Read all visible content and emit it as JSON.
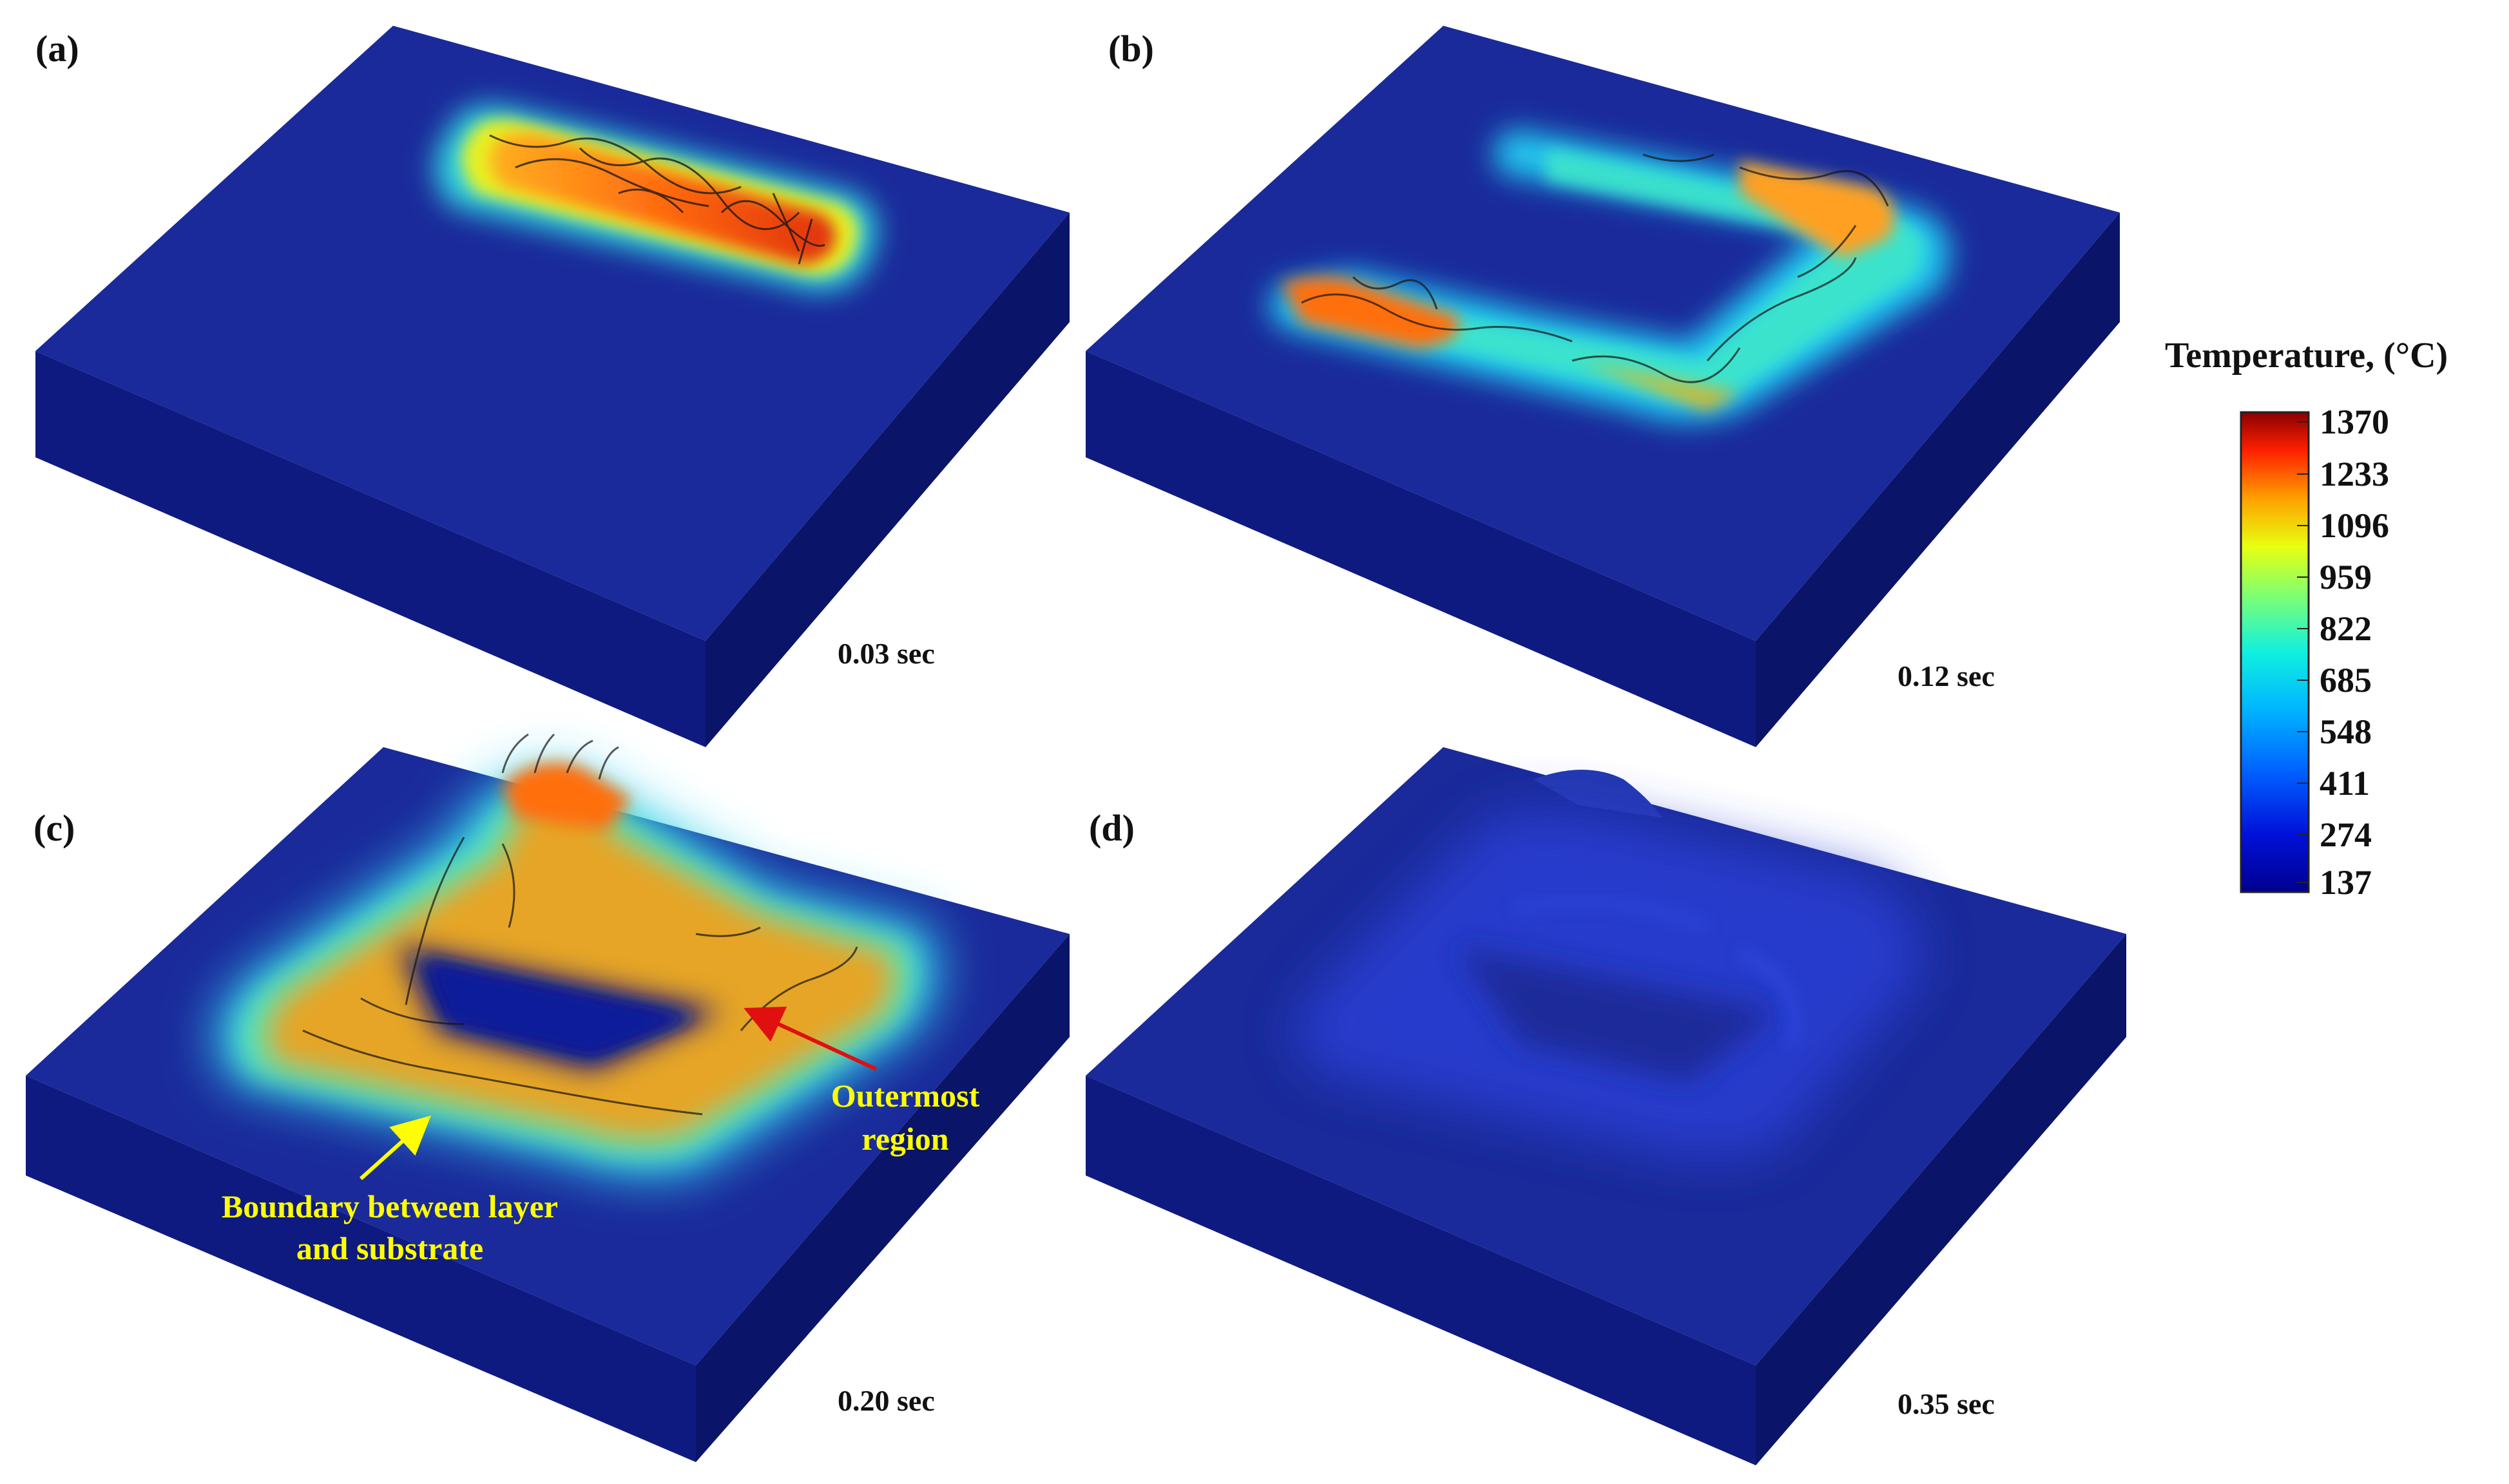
{
  "figure": {
    "panels": [
      {
        "label": "(a)",
        "time": "0.03 sec"
      },
      {
        "label": "(b)",
        "time": "0.12 sec"
      },
      {
        "label": "(c)",
        "time": "0.20 sec"
      },
      {
        "label": "(d)",
        "time": "0.35 sec"
      }
    ],
    "annotations": {
      "outermost_line1": "Outermost",
      "outermost_line2": "region",
      "boundary_line1": "Boundary between layer",
      "boundary_line2": "and substrate"
    },
    "colorbar": {
      "title": "Temperature, (°C)",
      "ticks": [
        "1370",
        "1233",
        "1096",
        "959",
        "822",
        "685",
        "548",
        "411",
        "274",
        "137"
      ]
    },
    "colors": {
      "substrate_top": "#1a2a9a",
      "substrate_front": "#0f1a80",
      "substrate_side": "#0a1468",
      "arrow_red": "#e01010",
      "arrow_yellow": "#ffff00",
      "annotation_text": "#ffff00"
    }
  }
}
